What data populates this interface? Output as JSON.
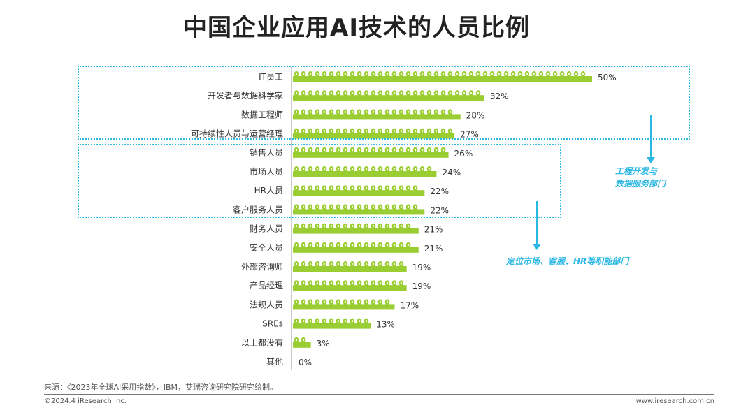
{
  "header": {
    "title": "中国企业应用AI技术的人员比例"
  },
  "chart_data": {
    "type": "bar",
    "orientation": "horizontal",
    "categories": [
      "IT员工",
      "开发者与数据科学家",
      "数据工程师",
      "可持续性人员与运营经理",
      "销售人员",
      "市场人员",
      "HR人员",
      "客户服务人员",
      "财务人员",
      "安全人员",
      "外部咨询师",
      "产品经理",
      "法规人员",
      "SREs",
      "以上都没有",
      "其他"
    ],
    "values": [
      50,
      32,
      28,
      27,
      26,
      24,
      22,
      22,
      21,
      21,
      19,
      19,
      17,
      13,
      3,
      0
    ],
    "value_labels": [
      "50%",
      "32%",
      "28%",
      "27%",
      "26%",
      "24%",
      "22%",
      "22%",
      "21%",
      "21%",
      "19%",
      "19%",
      "17%",
      "13%",
      "3%",
      "0%"
    ],
    "unit": "%",
    "bar_color": "#9acd32",
    "dot_color": "#f2f7d9"
  },
  "annotations": {
    "group1": "工程开发与\n数据服务部门",
    "group2": "定位市场、客服、HR等职能部门",
    "color": "#2ab7e3"
  },
  "footer": {
    "source": "来源：《2023年全球AI采用指数》，IBM，艾瑞咨询研究院研究绘制。",
    "copyright": "©2024.4 iResearch Inc.",
    "site": "www.iresearch.com.cn"
  }
}
